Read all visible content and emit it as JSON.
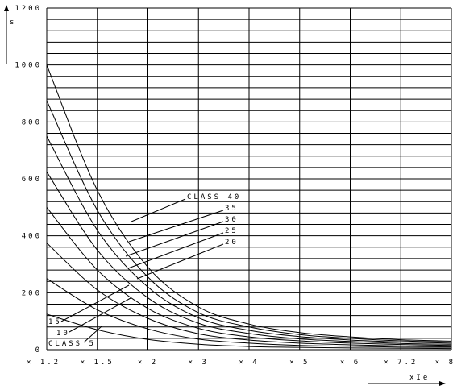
{
  "chart_data": {
    "type": "line",
    "x_tick_labels": [
      "× 1.2",
      "× 1.5",
      "× 2",
      "× 3",
      "× 4",
      "× 5",
      "× 6",
      "× 7.2",
      "× 8"
    ],
    "y_tick_labels": [
      "0",
      "200",
      "400",
      "600",
      "800",
      "1000",
      "1200"
    ],
    "ylim": [
      0,
      1200
    ],
    "y_unit": "s",
    "x_unit": "xIe",
    "grid": true,
    "series": [
      {
        "name": "CLASS 40",
        "values": [
          1000,
          560,
          290,
          150,
          90,
          60,
          45,
          35,
          30
        ]
      },
      {
        "name": "35",
        "values": [
          875,
          490,
          255,
          130,
          80,
          53,
          40,
          31,
          27
        ]
      },
      {
        "name": "30",
        "values": [
          750,
          420,
          220,
          112,
          68,
          46,
          34,
          27,
          23
        ]
      },
      {
        "name": "25",
        "values": [
          625,
          350,
          182,
          93,
          57,
          38,
          29,
          22,
          19
        ]
      },
      {
        "name": "20",
        "values": [
          500,
          280,
          145,
          75,
          45,
          31,
          23,
          18,
          15
        ]
      },
      {
        "name": "15",
        "values": [
          375,
          210,
          110,
          56,
          34,
          23,
          17,
          13,
          11
        ]
      },
      {
        "name": "10",
        "values": [
          250,
          140,
          73,
          37,
          23,
          15,
          12,
          9,
          8
        ]
      },
      {
        "name": "CLASS 5",
        "values": [
          125,
          70,
          36,
          19,
          11,
          8,
          6,
          5,
          4
        ]
      }
    ]
  }
}
